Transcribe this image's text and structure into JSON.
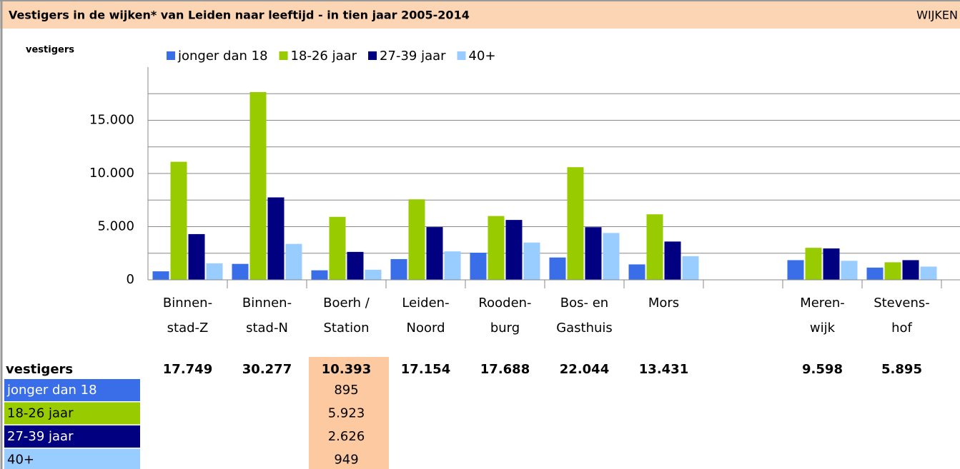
{
  "chart_data": {
    "type": "bar",
    "title": "Vestigers in de wijken* van Leiden naar leeftijd - in tien jaar 2005-2014",
    "tab_label": "WIJKEN",
    "y_label": "vestigers",
    "categories": [
      [
        "Binnen-",
        "stad-Z"
      ],
      [
        "Binnen-",
        "stad-N"
      ],
      [
        "Boerh /",
        "Station"
      ],
      [
        "Leiden-",
        "Noord"
      ],
      [
        "Rooden-",
        "burg"
      ],
      [
        "Bos- en",
        "Gasthuis"
      ],
      [
        "Mors"
      ],
      null,
      [
        "Meren-",
        "wijk"
      ],
      [
        "Stevens-",
        "hof"
      ]
    ],
    "series": [
      {
        "name": "jonger dan 18",
        "color": "#3a6ee8",
        "values": [
          800,
          1500,
          895,
          1950,
          2550,
          2100,
          1450,
          null,
          1850,
          1150
        ]
      },
      {
        "name": "18-26 jaar",
        "color": "#99cc00",
        "values": [
          11100,
          17650,
          5923,
          7570,
          6000,
          10590,
          6160,
          null,
          3010,
          1650
        ]
      },
      {
        "name": "27-39 jaar",
        "color": "#000080",
        "values": [
          4300,
          7750,
          2626,
          4960,
          5630,
          4950,
          3600,
          null,
          2950,
          1850
        ]
      },
      {
        "name": "40+",
        "color": "#99ccff",
        "values": [
          1549,
          3377,
          949,
          2674,
          3508,
          4404,
          2221,
          null,
          1788,
          1245
        ]
      }
    ],
    "ylim": [
      0,
      20000
    ],
    "yticks": [
      0,
      {
        "value": 5000,
        "label": "5.000"
      },
      {
        "value": 10000,
        "label": "10.000"
      },
      {
        "value": 15000,
        "label": "15.000"
      }
    ],
    "minor_yticks": [
      2500,
      7500,
      12500,
      17500
    ],
    "grid": true,
    "legend": "top",
    "totals": {
      "label": "vestigers",
      "values": [
        17749,
        30277,
        10393,
        17154,
        17688,
        22044,
        13431,
        null,
        9598,
        5895
      ],
      "value_labels": [
        "17.749",
        "30.277",
        "10.393",
        "17.154",
        "17.688",
        "22.044",
        "13.431",
        null,
        "9.598",
        "5.895"
      ]
    },
    "detail": {
      "category_index": 2,
      "values": [
        895,
        5923,
        2626,
        949
      ],
      "value_labels": [
        "895",
        "5.923",
        "2.626",
        "949"
      ]
    }
  }
}
